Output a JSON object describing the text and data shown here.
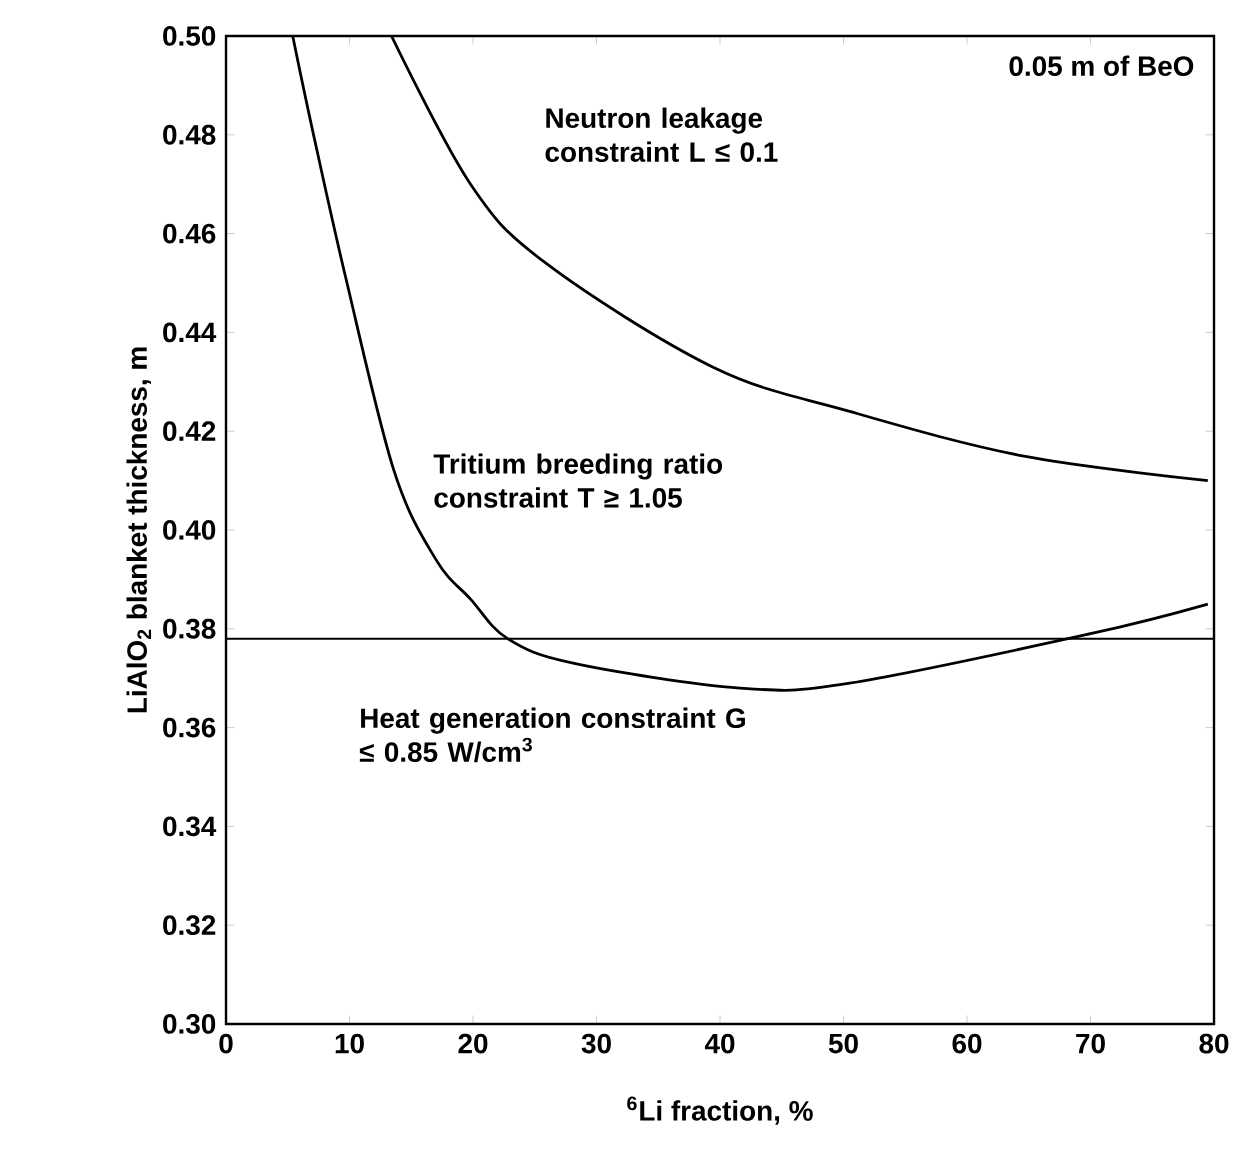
{
  "chart_data": {
    "type": "line",
    "xlabel": "$^{6}$Li fraction, %",
    "ylabel": "LiAlO$_{2}$ blanket thickness, m",
    "xlim": [
      0,
      80
    ],
    "ylim": [
      0.3,
      0.5
    ],
    "xticks": [
      0,
      10,
      20,
      30,
      40,
      50,
      60,
      70,
      80
    ],
    "yticks": [
      {
        "value": 0.3,
        "label": "0.30"
      },
      0.32,
      0.34,
      0.36,
      0.38,
      {
        "value": 0.4,
        "label": "0.40"
      },
      0.42,
      0.44,
      0.46,
      0.48,
      {
        "value": 0.5,
        "label": "0.50"
      }
    ],
    "series": [
      {
        "name": "Tritium breeding ratio constraint T ≥ 1.05",
        "color": "#000000",
        "x": [
          5.4,
          7.0,
          9.7,
          13.6,
          17,
          19.8,
          22.8,
          28.2,
          41.6,
          50.5,
          70,
          79.5
        ],
        "values": [
          0.5,
          0.481,
          0.451,
          0.412,
          0.394,
          0.386,
          0.378,
          0.373,
          0.368,
          0.369,
          0.379,
          0.385
        ]
      },
      {
        "name": "Neutron leakage constraint L ≤ 0.1",
        "color": "#000000",
        "x": [
          13.4,
          19.8,
          25.9,
          39.4,
          50.5,
          64.5,
          79.5
        ],
        "values": [
          0.5,
          0.47,
          0.454,
          0.433,
          0.424,
          0.415,
          0.41
        ]
      }
    ],
    "ref_lines": [
      {
        "axis": "y",
        "value": 0.378,
        "label": "Heat generation constraint G ≤ 0.85 W/cm$^{3}$",
        "color": "#000000"
      }
    ],
    "annotations": [
      "0.05 m of BeO"
    ],
    "grid": false,
    "line_style": "solid",
    "marker": "none"
  }
}
